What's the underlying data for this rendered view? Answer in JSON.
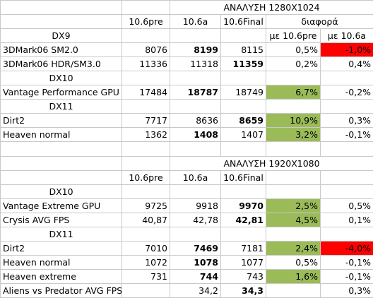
{
  "section1": {
    "title": "ΑΝΑΛΥΣΗ 1280X1024",
    "headers": {
      "c1": "10.6pre",
      "c2": "10.6a",
      "c3": "10.6Final",
      "diff": "διαφορά"
    },
    "subheaders": {
      "vs_pre": "με 10.6pre",
      "vs_a": "με 10.6a"
    },
    "groups": [
      {
        "label": "DX9",
        "rows": [
          {
            "name": "3DMark06 SM2.0",
            "pre": "8076",
            "a": "8199",
            "final": "8115",
            "d_pre": "0,5%",
            "d_a": "-1,0%",
            "bold": "a",
            "hl_pre": "",
            "hl_a": "red"
          },
          {
            "name": "3DMark06 HDR/SM3.0",
            "pre": "11336",
            "a": "11318",
            "final": "11359",
            "d_pre": "0,2%",
            "d_a": "0,4%",
            "bold": "final",
            "hl_pre": "",
            "hl_a": ""
          }
        ]
      },
      {
        "label": "DX10",
        "rows": [
          {
            "name": "Vantage Performance GPU",
            "pre": "17484",
            "a": "18787",
            "final": "18749",
            "d_pre": "6,7%",
            "d_a": "-0,2%",
            "bold": "a",
            "hl_pre": "green",
            "hl_a": ""
          }
        ]
      },
      {
        "label": "DX11",
        "rows": [
          {
            "name": "Dirt2",
            "pre": "7717",
            "a": "8636",
            "final": "8659",
            "d_pre": "10,9%",
            "d_a": "0,3%",
            "bold": "final",
            "hl_pre": "green",
            "hl_a": ""
          },
          {
            "name": "Heaven normal",
            "pre": "1362",
            "a": "1408",
            "final": "1407",
            "d_pre": "3,2%",
            "d_a": "-0,1%",
            "bold": "a",
            "hl_pre": "green",
            "hl_a": ""
          }
        ]
      }
    ]
  },
  "section2": {
    "title": "ΑΝΑΛΥΣΗ 1920X1080",
    "headers": {
      "c1": "10.6pre",
      "c2": "10.6a",
      "c3": "10.6Final"
    },
    "groups": [
      {
        "label": "DX10",
        "rows": [
          {
            "name": "Vantage Extreme GPU",
            "pre": "9725",
            "a": "9918",
            "final": "9970",
            "d_pre": "2,5%",
            "d_a": "0,5%",
            "bold": "final",
            "hl_pre": "green",
            "hl_a": ""
          },
          {
            "name": "Crysis AVG FPS",
            "pre": "40,87",
            "a": "42,78",
            "final": "42,81",
            "d_pre": "4,5%",
            "d_a": "0,1%",
            "bold": "final",
            "hl_pre": "green",
            "hl_a": ""
          }
        ]
      },
      {
        "label": "DX11",
        "rows": [
          {
            "name": "Dirt2",
            "pre": "7010",
            "a": "7469",
            "final": "7181",
            "d_pre": "2,4%",
            "d_a": "-4,0%",
            "bold": "a",
            "hl_pre": "green",
            "hl_a": "red"
          },
          {
            "name": "Heaven normal",
            "pre": "1072",
            "a": "1078",
            "final": "1077",
            "d_pre": "0,5%",
            "d_a": "-0,1%",
            "bold": "a",
            "hl_pre": "",
            "hl_a": ""
          },
          {
            "name": "Heaven extreme",
            "pre": "731",
            "a": "744",
            "final": "743",
            "d_pre": "1,6%",
            "d_a": "-0,1%",
            "bold": "a",
            "hl_pre": "green",
            "hl_a": ""
          },
          {
            "name": "Aliens vs Predator AVG FPS",
            "pre": "",
            "a": "34,2",
            "final": "34,3",
            "d_pre": "",
            "d_a": "0,3%",
            "bold": "final",
            "hl_pre": "",
            "hl_a": ""
          }
        ]
      }
    ]
  },
  "colors": {
    "green": "#9bbb59",
    "red": "#ff0000",
    "grid": "#c9c9c9"
  }
}
